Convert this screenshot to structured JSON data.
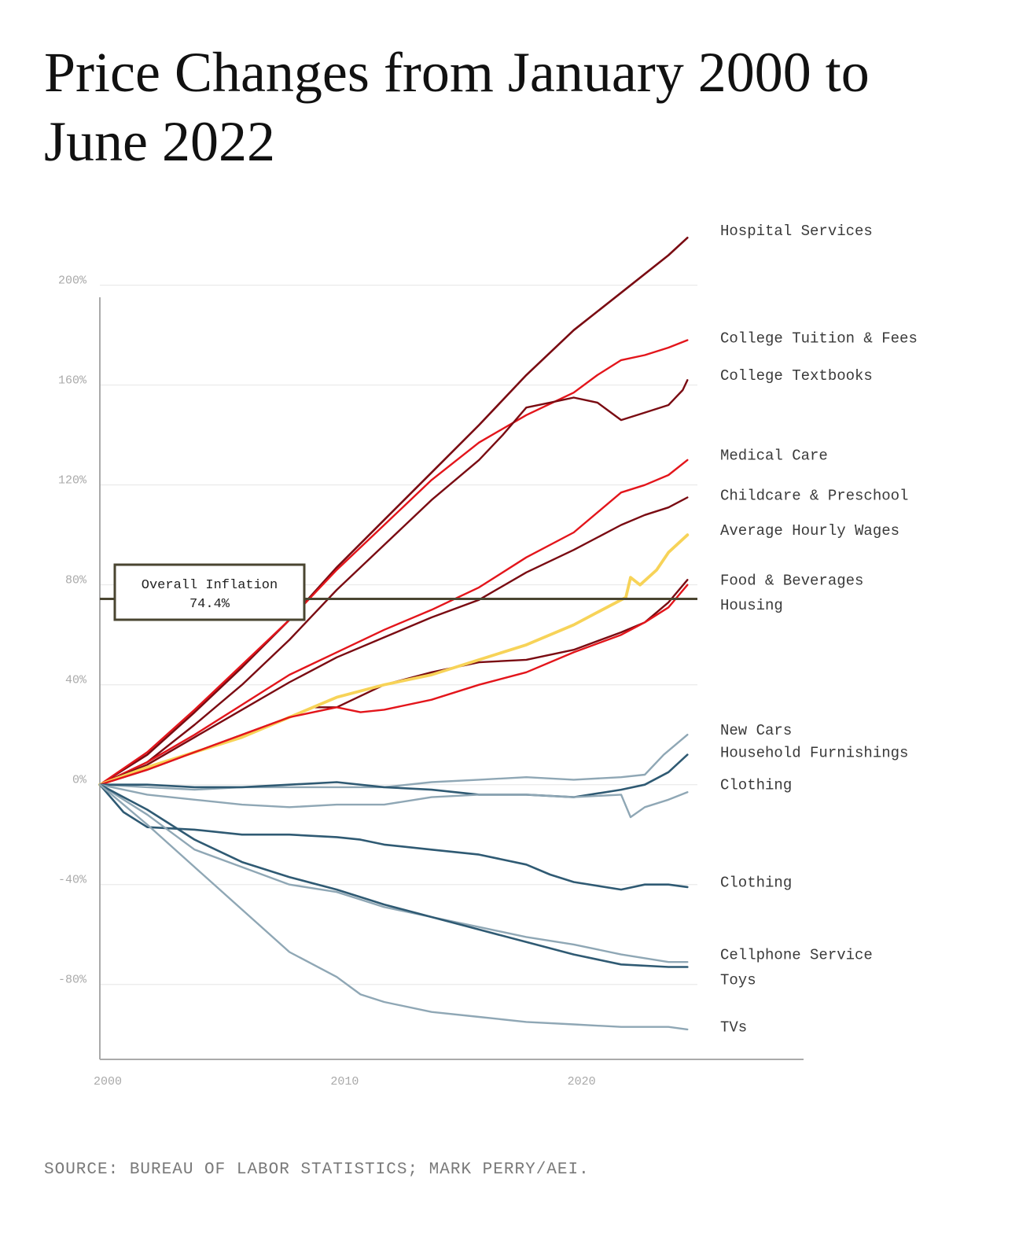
{
  "title": "Price Changes from January 2000 to June 2022",
  "source": "SOURCE: BUREAU OF LABOR STATISTICS; MARK PERRY/AEI.",
  "chart_data": {
    "type": "line",
    "title": "Price Changes from January 2000 to June 2022",
    "xlim": [
      2000,
      2029.7
    ],
    "ylim": [
      -110,
      215
    ],
    "x_ticks": [
      {
        "value": 2000,
        "label": "2000"
      },
      {
        "value": 2010,
        "label": "2010"
      },
      {
        "value": 2020,
        "label": "2020"
      }
    ],
    "y_ticks": [
      {
        "value": 200,
        "label": "200%"
      },
      {
        "value": 160,
        "label": "160%"
      },
      {
        "value": 120,
        "label": "120%"
      },
      {
        "value": 80,
        "label": "80%"
      },
      {
        "value": 40,
        "label": "40%"
      },
      {
        "value": 0,
        "label": "0%"
      },
      {
        "value": -40,
        "label": "-40%"
      },
      {
        "value": -80,
        "label": "-80%"
      }
    ],
    "grid": "horizontal",
    "reference_line": {
      "value": 74.4,
      "label": "Overall Inflation",
      "value_label": "74.4%",
      "color": "#4a4531"
    },
    "series": [
      {
        "name": "Hospital Services",
        "color": "#7a0b12",
        "width": 2.6,
        "label_y": 222,
        "points": [
          [
            2000,
            0
          ],
          [
            2002,
            12
          ],
          [
            2004,
            29
          ],
          [
            2006,
            47
          ],
          [
            2008,
            66
          ],
          [
            2010,
            87
          ],
          [
            2012,
            106
          ],
          [
            2014,
            125
          ],
          [
            2016,
            144
          ],
          [
            2018,
            164
          ],
          [
            2020,
            182
          ],
          [
            2022,
            197
          ],
          [
            2024,
            212
          ],
          [
            2024.8,
            219
          ]
        ]
      },
      {
        "name": "College Tuition & Fees",
        "color": "#e3151b",
        "width": 2.4,
        "label_y": 179,
        "points": [
          [
            2000,
            0
          ],
          [
            2002,
            13
          ],
          [
            2004,
            30
          ],
          [
            2006,
            48
          ],
          [
            2008,
            66
          ],
          [
            2010,
            86
          ],
          [
            2012,
            104
          ],
          [
            2014,
            122
          ],
          [
            2016,
            137
          ],
          [
            2018,
            148
          ],
          [
            2020,
            157
          ],
          [
            2021,
            164
          ],
          [
            2022,
            170
          ],
          [
            2023,
            172
          ],
          [
            2024,
            175
          ],
          [
            2024.8,
            178
          ]
        ]
      },
      {
        "name": "College Textbooks",
        "color": "#7a0b12",
        "width": 2.4,
        "label_y": 164,
        "points": [
          [
            2000,
            0
          ],
          [
            2002,
            9
          ],
          [
            2004,
            24
          ],
          [
            2006,
            40
          ],
          [
            2008,
            58
          ],
          [
            2010,
            78
          ],
          [
            2012,
            96
          ],
          [
            2014,
            114
          ],
          [
            2016,
            130
          ],
          [
            2017,
            140
          ],
          [
            2018,
            151
          ],
          [
            2019,
            153
          ],
          [
            2020,
            155
          ],
          [
            2021,
            153
          ],
          [
            2022,
            146
          ],
          [
            2023,
            149
          ],
          [
            2024,
            152
          ],
          [
            2024.6,
            158
          ],
          [
            2024.8,
            162
          ]
        ]
      },
      {
        "name": "Medical Care",
        "color": "#e3151b",
        "width": 2.4,
        "label_y": 132,
        "points": [
          [
            2000,
            0
          ],
          [
            2002,
            9
          ],
          [
            2004,
            20
          ],
          [
            2006,
            32
          ],
          [
            2008,
            44
          ],
          [
            2010,
            53
          ],
          [
            2012,
            62
          ],
          [
            2014,
            70
          ],
          [
            2016,
            79
          ],
          [
            2018,
            91
          ],
          [
            2020,
            101
          ],
          [
            2022,
            117
          ],
          [
            2023,
            120
          ],
          [
            2024,
            124
          ],
          [
            2024.8,
            130
          ]
        ]
      },
      {
        "name": "Childcare & Preschool",
        "color": "#7a0b12",
        "width": 2.4,
        "label_y": 116,
        "points": [
          [
            2000,
            0
          ],
          [
            2002,
            8
          ],
          [
            2004,
            19
          ],
          [
            2006,
            30
          ],
          [
            2008,
            41
          ],
          [
            2010,
            51
          ],
          [
            2012,
            59
          ],
          [
            2014,
            67
          ],
          [
            2016,
            74
          ],
          [
            2018,
            85
          ],
          [
            2020,
            94
          ],
          [
            2022,
            104
          ],
          [
            2023,
            108
          ],
          [
            2024,
            111
          ],
          [
            2024.8,
            115
          ]
        ]
      },
      {
        "name": "Average Hourly Wages",
        "color": "#7a0b12",
        "width": 2.4,
        "label_y": 102,
        "points": [
          [
            2000,
            0
          ],
          [
            2002,
            6
          ],
          [
            2004,
            13
          ],
          [
            2006,
            20
          ],
          [
            2008,
            27
          ],
          [
            2009,
            31
          ],
          [
            2010,
            31
          ],
          [
            2012,
            40
          ],
          [
            2014,
            45
          ],
          [
            2016,
            49
          ],
          [
            2018,
            50
          ],
          [
            2020,
            54
          ],
          [
            2022,
            61
          ],
          [
            2023,
            65
          ],
          [
            2024,
            73
          ],
          [
            2024.8,
            82
          ]
        ]
      },
      {
        "name": "Food & Beverages",
        "color": "#f7d358",
        "width": 3.8,
        "label_y": 82,
        "points": [
          [
            2000,
            0
          ],
          [
            2002,
            7
          ],
          [
            2004,
            13
          ],
          [
            2006,
            19
          ],
          [
            2008,
            27
          ],
          [
            2010,
            35
          ],
          [
            2012,
            40
          ],
          [
            2014,
            44
          ],
          [
            2016,
            50
          ],
          [
            2018,
            56
          ],
          [
            2020,
            64
          ],
          [
            2021,
            69
          ],
          [
            2022.2,
            75
          ],
          [
            2022.4,
            83
          ],
          [
            2022.8,
            80
          ],
          [
            2023.5,
            86
          ],
          [
            2024,
            93
          ],
          [
            2024.8,
            100
          ]
        ]
      },
      {
        "name": "Housing",
        "color": "#e3151b",
        "width": 2.4,
        "label_y": 72,
        "points": [
          [
            2000,
            0
          ],
          [
            2002,
            6
          ],
          [
            2004,
            13
          ],
          [
            2006,
            20
          ],
          [
            2008,
            27
          ],
          [
            2010,
            31
          ],
          [
            2011,
            29
          ],
          [
            2012,
            30
          ],
          [
            2014,
            34
          ],
          [
            2016,
            40
          ],
          [
            2018,
            45
          ],
          [
            2020,
            53
          ],
          [
            2022,
            60
          ],
          [
            2023,
            65
          ],
          [
            2024,
            71
          ],
          [
            2024.8,
            80
          ]
        ]
      },
      {
        "name": "New Cars",
        "color": "#8fa7b5",
        "width": 2.4,
        "label_y": 22,
        "points": [
          [
            2000,
            0
          ],
          [
            2002,
            -1
          ],
          [
            2004,
            -2
          ],
          [
            2006,
            -1
          ],
          [
            2008,
            -1
          ],
          [
            2010,
            -1
          ],
          [
            2012,
            -1
          ],
          [
            2014,
            1
          ],
          [
            2016,
            2
          ],
          [
            2018,
            3
          ],
          [
            2020,
            2
          ],
          [
            2022,
            3
          ],
          [
            2023,
            4
          ],
          [
            2023.8,
            12
          ],
          [
            2024.8,
            20
          ]
        ]
      },
      {
        "name": "Household Furnishings",
        "color": "#2f5a73",
        "width": 2.6,
        "label_y": 13,
        "points": [
          [
            2000,
            0
          ],
          [
            2002,
            0
          ],
          [
            2004,
            -1
          ],
          [
            2006,
            -1
          ],
          [
            2008,
            0
          ],
          [
            2010,
            1
          ],
          [
            2012,
            -1
          ],
          [
            2014,
            -2
          ],
          [
            2016,
            -4
          ],
          [
            2018,
            -4
          ],
          [
            2020,
            -5
          ],
          [
            2022,
            -2
          ],
          [
            2023,
            0
          ],
          [
            2024,
            5
          ],
          [
            2024.8,
            12
          ]
        ]
      },
      {
        "name": "Clothing",
        "color": "#8fa7b5",
        "width": 2.4,
        "label_y": 0,
        "points": [
          [
            2000,
            0
          ],
          [
            2002,
            -4
          ],
          [
            2004,
            -6
          ],
          [
            2006,
            -8
          ],
          [
            2008,
            -9
          ],
          [
            2010,
            -8
          ],
          [
            2012,
            -8
          ],
          [
            2014,
            -5
          ],
          [
            2016,
            -4
          ],
          [
            2018,
            -4
          ],
          [
            2020,
            -5
          ],
          [
            2022,
            -4
          ],
          [
            2022.4,
            -13
          ],
          [
            2023,
            -9
          ],
          [
            2024,
            -6
          ],
          [
            2024.8,
            -3
          ]
        ]
      },
      {
        "name": "Clothing",
        "color": "#2f5a73",
        "width": 2.6,
        "label_y": -39,
        "points": [
          [
            2000,
            0
          ],
          [
            2001,
            -11
          ],
          [
            2002,
            -17
          ],
          [
            2004,
            -18
          ],
          [
            2006,
            -20
          ],
          [
            2008,
            -20
          ],
          [
            2010,
            -21
          ],
          [
            2011,
            -22
          ],
          [
            2012,
            -24
          ],
          [
            2014,
            -26
          ],
          [
            2016,
            -28
          ],
          [
            2018,
            -32
          ],
          [
            2019,
            -36
          ],
          [
            2020,
            -39
          ],
          [
            2022,
            -42
          ],
          [
            2023,
            -40
          ],
          [
            2024,
            -40
          ],
          [
            2024.8,
            -41
          ]
        ]
      },
      {
        "name": "Cellphone Service",
        "color": "#8fa7b5",
        "width": 2.4,
        "label_y": -68,
        "points": [
          [
            2000,
            0
          ],
          [
            2002,
            -12
          ],
          [
            2004,
            -26
          ],
          [
            2006,
            -33
          ],
          [
            2008,
            -40
          ],
          [
            2010,
            -43
          ],
          [
            2012,
            -49
          ],
          [
            2014,
            -53
          ],
          [
            2016,
            -57
          ],
          [
            2018,
            -61
          ],
          [
            2020,
            -64
          ],
          [
            2022,
            -68
          ],
          [
            2024,
            -71
          ],
          [
            2024.8,
            -71
          ]
        ]
      },
      {
        "name": "Toys",
        "color": "#2f5a73",
        "width": 2.6,
        "label_y": -78,
        "points": [
          [
            2000,
            0
          ],
          [
            2002,
            -10
          ],
          [
            2004,
            -22
          ],
          [
            2006,
            -31
          ],
          [
            2008,
            -37
          ],
          [
            2010,
            -42
          ],
          [
            2012,
            -48
          ],
          [
            2014,
            -53
          ],
          [
            2016,
            -58
          ],
          [
            2018,
            -63
          ],
          [
            2020,
            -68
          ],
          [
            2022,
            -72
          ],
          [
            2024,
            -73
          ],
          [
            2024.8,
            -73
          ]
        ]
      },
      {
        "name": "TVs",
        "color": "#8fa7b5",
        "width": 2.4,
        "label_y": -97,
        "points": [
          [
            2000,
            0
          ],
          [
            2002,
            -16
          ],
          [
            2004,
            -33
          ],
          [
            2006,
            -50
          ],
          [
            2008,
            -67
          ],
          [
            2010,
            -77
          ],
          [
            2011,
            -84
          ],
          [
            2012,
            -87
          ],
          [
            2014,
            -91
          ],
          [
            2016,
            -93
          ],
          [
            2018,
            -95
          ],
          [
            2020,
            -96
          ],
          [
            2022,
            -97
          ],
          [
            2024,
            -97
          ],
          [
            2024.8,
            -98
          ]
        ]
      }
    ]
  }
}
